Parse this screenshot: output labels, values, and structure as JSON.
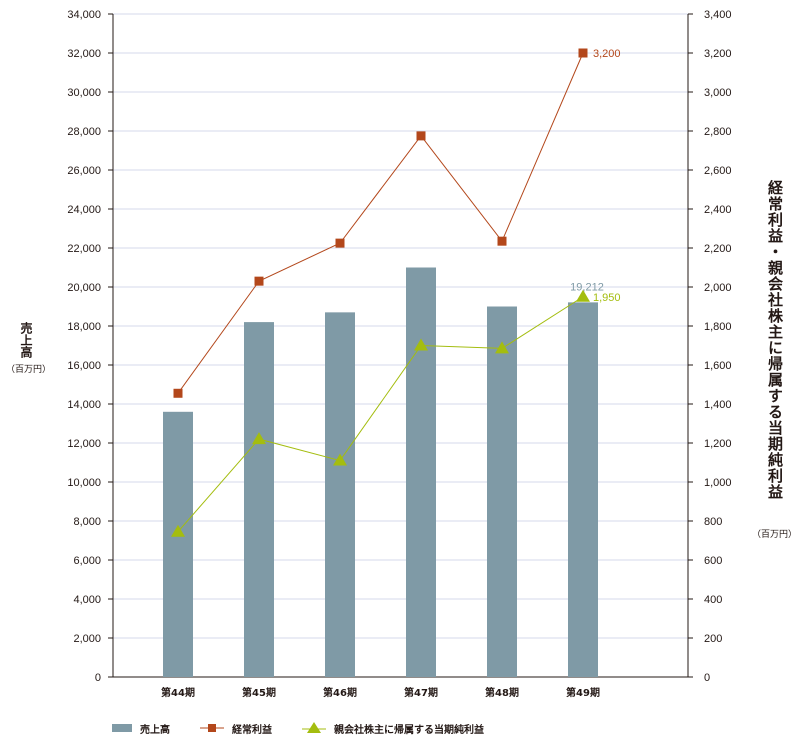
{
  "chart_data": {
    "type": "bar+line",
    "categories": [
      "第44期",
      "第45期",
      "第46期",
      "第47期",
      "第48期",
      "第49期"
    ],
    "left_axis": {
      "label": "売上高",
      "unit": "（百万円）",
      "ylim": [
        0,
        34000
      ],
      "ticks": [
        "0",
        "2,000",
        "4,000",
        "6,000",
        "8,000",
        "10,000",
        "12,000",
        "14,000",
        "16,000",
        "18,000",
        "20,000",
        "22,000",
        "24,000",
        "26,000",
        "28,000",
        "30,000",
        "32,000",
        "34,000"
      ]
    },
    "right_axis": {
      "label": "経常利益・親会社株主に帰属する当期純利益",
      "unit": "（百万円）",
      "ylim": [
        0,
        3400
      ],
      "ticks": [
        "0",
        "200",
        "400",
        "600",
        "800",
        "1,000",
        "1,200",
        "1,400",
        "1,600",
        "1,800",
        "2,000",
        "2,200",
        "2,400",
        "2,600",
        "2,800",
        "3,000",
        "3,200",
        "3,400"
      ]
    },
    "series": [
      {
        "name": "売上高",
        "type": "bar",
        "axis": "left",
        "color": "#7f9aa6",
        "values": [
          13600,
          18200,
          18700,
          21000,
          19000,
          19212
        ],
        "data_labels": {
          "5": "19,212"
        },
        "label_color": "#7f9aa6"
      },
      {
        "name": "経常利益",
        "type": "line",
        "axis": "right",
        "marker": "square",
        "color": "#b3471b",
        "values": [
          1455,
          2030,
          2225,
          2775,
          2235,
          3200
        ],
        "data_labels": {
          "5": "3,200"
        }
      },
      {
        "name": "親会社株主に帰属する当期純利益",
        "type": "line",
        "axis": "right",
        "marker": "triangle",
        "color": "#a4bd0f",
        "values": [
          745,
          1220,
          1110,
          1700,
          1685,
          1950
        ],
        "data_labels": {
          "5": "1,950"
        }
      }
    ],
    "grid": true,
    "legend_position": "bottom-left"
  }
}
